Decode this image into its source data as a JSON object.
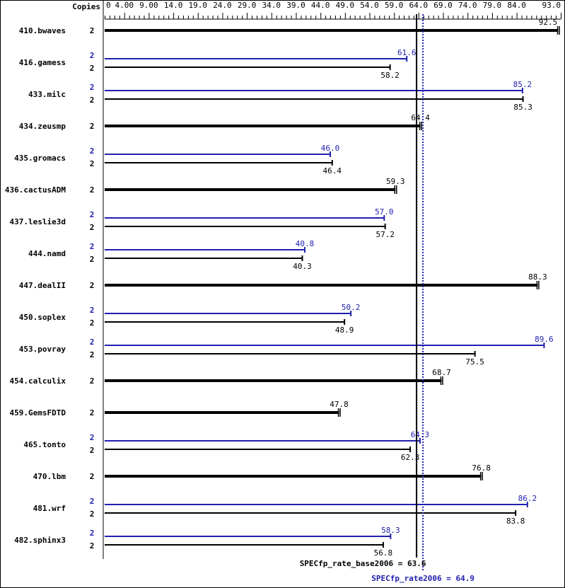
{
  "chart_data": {
    "type": "bar",
    "orientation": "horizontal",
    "copies_header": "Copies",
    "xlim": [
      0,
      93
    ],
    "x_tick_labels": [
      "0",
      "4.00",
      "9.00",
      "14.0",
      "19.0",
      "24.0",
      "29.0",
      "34.0",
      "39.0",
      "44.0",
      "49.0",
      "54.0",
      "59.0",
      "64.0",
      "69.0",
      "74.0",
      "79.0",
      "84.0",
      "93.0"
    ],
    "x_tick_values": [
      0,
      4,
      9,
      14,
      19,
      24,
      29,
      34,
      39,
      44,
      49,
      54,
      59,
      64,
      69,
      74,
      79,
      84,
      93
    ],
    "colors": {
      "base": "#000000",
      "peak": "#2020b0"
    },
    "benchmarks": [
      {
        "name": "410.bwaves",
        "copies_base": "2",
        "copies_peak": null,
        "base": 92.5,
        "peak": null,
        "base_label": "92.5",
        "peak_label": null
      },
      {
        "name": "416.gamess",
        "copies_base": "2",
        "copies_peak": "2",
        "base": 58.2,
        "peak": 61.6,
        "base_label": "58.2",
        "peak_label": "61.6"
      },
      {
        "name": "433.milc",
        "copies_base": "2",
        "copies_peak": "2",
        "base": 85.3,
        "peak": 85.2,
        "base_label": "85.3",
        "peak_label": "85.2"
      },
      {
        "name": "434.zeusmp",
        "copies_base": "2",
        "copies_peak": null,
        "base": 64.4,
        "peak": null,
        "base_label": "64.4",
        "peak_label": null
      },
      {
        "name": "435.gromacs",
        "copies_base": "2",
        "copies_peak": "2",
        "base": 46.4,
        "peak": 46.0,
        "base_label": "46.4",
        "peak_label": "46.0"
      },
      {
        "name": "436.cactusADM",
        "copies_base": "2",
        "copies_peak": null,
        "base": 59.3,
        "peak": null,
        "base_label": "59.3",
        "peak_label": null
      },
      {
        "name": "437.leslie3d",
        "copies_base": "2",
        "copies_peak": "2",
        "base": 57.2,
        "peak": 57.0,
        "base_label": "57.2",
        "peak_label": "57.0"
      },
      {
        "name": "444.namd",
        "copies_base": "2",
        "copies_peak": "2",
        "base": 40.3,
        "peak": 40.8,
        "base_label": "40.3",
        "peak_label": "40.8"
      },
      {
        "name": "447.dealII",
        "copies_base": "2",
        "copies_peak": null,
        "base": 88.3,
        "peak": null,
        "base_label": "88.3",
        "peak_label": null
      },
      {
        "name": "450.soplex",
        "copies_base": "2",
        "copies_peak": "2",
        "base": 48.9,
        "peak": 50.2,
        "base_label": "48.9",
        "peak_label": "50.2"
      },
      {
        "name": "453.povray",
        "copies_base": "2",
        "copies_peak": "2",
        "base": 75.5,
        "peak": 89.6,
        "base_label": "75.5",
        "peak_label": "89.6"
      },
      {
        "name": "454.calculix",
        "copies_base": "2",
        "copies_peak": null,
        "base": 68.7,
        "peak": null,
        "base_label": "68.7",
        "peak_label": null
      },
      {
        "name": "459.GemsFDTD",
        "copies_base": "2",
        "copies_peak": null,
        "base": 47.8,
        "peak": null,
        "base_label": "47.8",
        "peak_label": null
      },
      {
        "name": "465.tonto",
        "copies_base": "2",
        "copies_peak": "2",
        "base": 62.3,
        "peak": 64.3,
        "base_label": "62.3",
        "peak_label": "64.3"
      },
      {
        "name": "470.lbm",
        "copies_base": "2",
        "copies_peak": null,
        "base": 76.8,
        "peak": null,
        "base_label": "76.8",
        "peak_label": null
      },
      {
        "name": "481.wrf",
        "copies_base": "2",
        "copies_peak": "2",
        "base": 83.8,
        "peak": 86.2,
        "base_label": "83.8",
        "peak_label": "86.2"
      },
      {
        "name": "482.sphinx3",
        "copies_base": "2",
        "copies_peak": "2",
        "base": 56.8,
        "peak": 58.3,
        "base_label": "56.8",
        "peak_label": "58.3"
      }
    ],
    "summary": {
      "base_value": 63.6,
      "base_label": "SPECfp_rate_base2006 = 63.6",
      "peak_value": 64.9,
      "peak_label": "SPECfp_rate2006 = 64.9"
    }
  }
}
